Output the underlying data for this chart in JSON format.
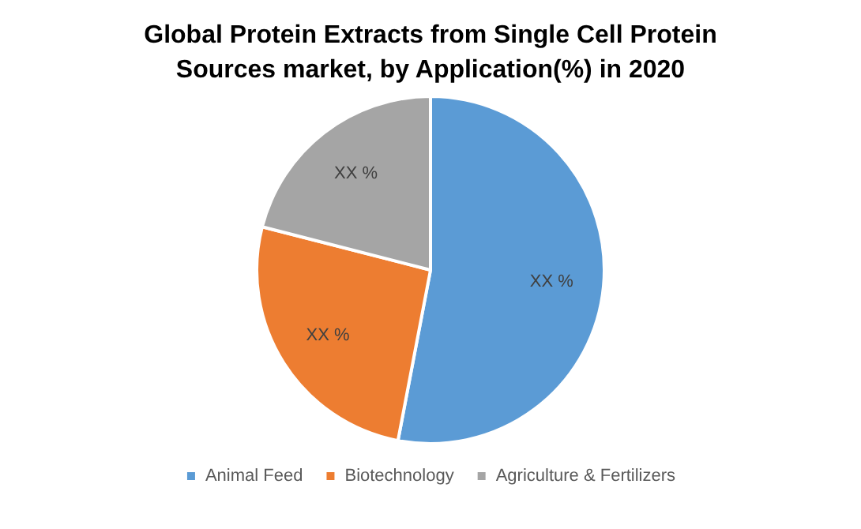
{
  "chart_data": {
    "type": "pie",
    "title": "Global Protein Extracts from Single Cell Protein Sources market, by Application(%) in 2020",
    "categories": [
      "Animal Feed",
      "Biotechnology",
      "Agriculture & Fertilizers"
    ],
    "values": [
      53,
      26,
      21
    ],
    "value_labels": [
      "XX %",
      "XX %",
      "XX %"
    ],
    "colors": [
      "#5b9bd5",
      "#ed7d31",
      "#a5a5a5"
    ],
    "legend": "bottom"
  }
}
